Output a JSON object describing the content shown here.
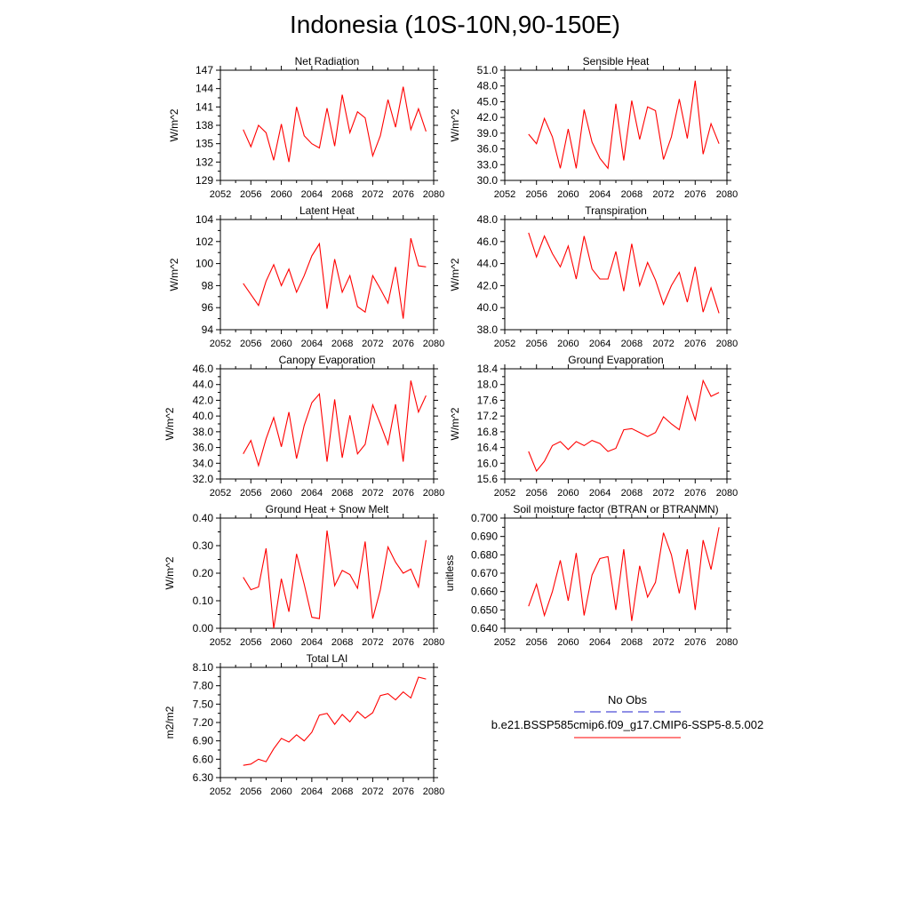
{
  "title": "Indonesia (10S-10N,90-150E)",
  "colors": {
    "series": "#ff0000",
    "obs": "#2020cc",
    "axis": "#000000"
  },
  "chart_data": [
    {
      "type": "line",
      "title": "Net Radiation",
      "ylabel": "W/m^2",
      "xlim": [
        2052,
        2080
      ],
      "ylim": [
        129,
        147
      ],
      "xticks": [
        "2052",
        "2056",
        "2060",
        "2064",
        "2068",
        "2072",
        "2076",
        "2080"
      ],
      "yticks": [
        "129",
        "132",
        "135",
        "138",
        "141",
        "144",
        "147"
      ],
      "x": [
        2055,
        2056,
        2057,
        2058,
        2059,
        2060,
        2061,
        2062,
        2063,
        2064,
        2065,
        2066,
        2067,
        2068,
        2069,
        2070,
        2071,
        2072,
        2073,
        2074,
        2075,
        2076,
        2077,
        2078,
        2079
      ],
      "series": [
        {
          "values": [
            137.3,
            134.5,
            138.0,
            136.8,
            132.3,
            138.2,
            132.0,
            141.0,
            136.3,
            135.0,
            134.3,
            140.8,
            134.6,
            143.0,
            136.8,
            140.2,
            139.2,
            133.0,
            136.3,
            142.2,
            137.7,
            144.3,
            137.3,
            140.7,
            137.0
          ]
        }
      ]
    },
    {
      "type": "line",
      "title": "Sensible Heat",
      "ylabel": "W/m^2",
      "xlim": [
        2052,
        2080
      ],
      "ylim": [
        30.0,
        51.0
      ],
      "xticks": [
        "2052",
        "2056",
        "2060",
        "2064",
        "2068",
        "2072",
        "2076",
        "2080"
      ],
      "yticks": [
        "30.0",
        "33.0",
        "36.0",
        "39.0",
        "42.0",
        "45.0",
        "48.0",
        "51.0"
      ],
      "x": [
        2055,
        2056,
        2057,
        2058,
        2059,
        2060,
        2061,
        2062,
        2063,
        2064,
        2065,
        2066,
        2067,
        2068,
        2069,
        2070,
        2071,
        2072,
        2073,
        2074,
        2075,
        2076,
        2077,
        2078,
        2079
      ],
      "series": [
        {
          "values": [
            38.8,
            37.0,
            41.8,
            38.3,
            32.3,
            39.8,
            32.3,
            43.5,
            37.3,
            34.2,
            32.3,
            44.6,
            33.8,
            45.2,
            37.8,
            44.0,
            43.3,
            34.0,
            38.3,
            45.5,
            38.0,
            49.0,
            35.0,
            40.8,
            37.0
          ]
        }
      ]
    },
    {
      "type": "line",
      "title": "Latent Heat",
      "ylabel": "W/m^2",
      "xlim": [
        2052,
        2080
      ],
      "ylim": [
        94,
        104
      ],
      "xticks": [
        "2052",
        "2056",
        "2060",
        "2064",
        "2068",
        "2072",
        "2076",
        "2080"
      ],
      "yticks": [
        "94",
        "96",
        "98",
        "100",
        "102",
        "104"
      ],
      "x": [
        2055,
        2056,
        2057,
        2058,
        2059,
        2060,
        2061,
        2062,
        2063,
        2064,
        2065,
        2066,
        2067,
        2068,
        2069,
        2070,
        2071,
        2072,
        2073,
        2074,
        2075,
        2076,
        2077,
        2078,
        2079
      ],
      "series": [
        {
          "values": [
            98.2,
            97.2,
            96.2,
            98.4,
            99.9,
            98.0,
            99.5,
            97.4,
            98.9,
            100.7,
            101.8,
            95.9,
            100.4,
            97.4,
            98.9,
            96.1,
            95.6,
            98.9,
            97.7,
            96.4,
            99.7,
            95.0,
            102.3,
            99.8,
            99.7
          ]
        }
      ]
    },
    {
      "type": "line",
      "title": "Transpiration",
      "ylabel": "W/m^2",
      "xlim": [
        2052,
        2080
      ],
      "ylim": [
        38.0,
        48.0
      ],
      "xticks": [
        "2052",
        "2056",
        "2060",
        "2064",
        "2068",
        "2072",
        "2076",
        "2080"
      ],
      "yticks": [
        "38.0",
        "40.0",
        "42.0",
        "44.0",
        "46.0",
        "48.0"
      ],
      "x": [
        2055,
        2056,
        2057,
        2058,
        2059,
        2060,
        2061,
        2062,
        2063,
        2064,
        2065,
        2066,
        2067,
        2068,
        2069,
        2070,
        2071,
        2072,
        2073,
        2074,
        2075,
        2076,
        2077,
        2078,
        2079
      ],
      "series": [
        {
          "values": [
            46.8,
            44.6,
            46.5,
            44.9,
            43.7,
            45.6,
            42.6,
            46.5,
            43.5,
            42.6,
            42.6,
            45.1,
            41.5,
            45.8,
            42.0,
            44.1,
            42.5,
            40.3,
            42.0,
            43.2,
            40.5,
            43.7,
            39.6,
            41.8,
            39.5
          ]
        }
      ]
    },
    {
      "type": "line",
      "title": "Canopy Evaporation",
      "ylabel": "W/m^2",
      "xlim": [
        2052,
        2080
      ],
      "ylim": [
        32.0,
        46.0
      ],
      "xticks": [
        "2052",
        "2056",
        "2060",
        "2064",
        "2068",
        "2072",
        "2076",
        "2080"
      ],
      "yticks": [
        "32.0",
        "34.0",
        "36.0",
        "38.0",
        "40.0",
        "42.0",
        "44.0",
        "46.0"
      ],
      "x": [
        2055,
        2056,
        2057,
        2058,
        2059,
        2060,
        2061,
        2062,
        2063,
        2064,
        2065,
        2066,
        2067,
        2068,
        2069,
        2070,
        2071,
        2072,
        2073,
        2074,
        2075,
        2076,
        2077,
        2078,
        2079
      ],
      "series": [
        {
          "values": [
            35.2,
            36.9,
            33.7,
            37.1,
            39.8,
            36.1,
            40.5,
            34.6,
            38.8,
            41.7,
            42.8,
            34.2,
            42.1,
            34.7,
            40.1,
            35.2,
            36.4,
            41.4,
            39.0,
            36.4,
            41.5,
            34.2,
            44.5,
            40.5,
            42.6
          ]
        }
      ]
    },
    {
      "type": "line",
      "title": "Ground Evaporation",
      "ylabel": "W/m^2",
      "xlim": [
        2052,
        2080
      ],
      "ylim": [
        15.6,
        18.4
      ],
      "xticks": [
        "2052",
        "2056",
        "2060",
        "2064",
        "2068",
        "2072",
        "2076",
        "2080"
      ],
      "yticks": [
        "15.6",
        "16.0",
        "16.4",
        "16.8",
        "17.2",
        "17.6",
        "18.0",
        "18.4"
      ],
      "x": [
        2055,
        2056,
        2057,
        2058,
        2059,
        2060,
        2061,
        2062,
        2063,
        2064,
        2065,
        2066,
        2067,
        2068,
        2069,
        2070,
        2071,
        2072,
        2073,
        2074,
        2075,
        2076,
        2077,
        2078,
        2079
      ],
      "series": [
        {
          "values": [
            16.3,
            15.8,
            16.05,
            16.45,
            16.55,
            16.35,
            16.55,
            16.45,
            16.58,
            16.5,
            16.3,
            16.38,
            16.85,
            16.88,
            16.78,
            16.68,
            16.78,
            17.18,
            17.0,
            16.85,
            17.7,
            17.1,
            18.1,
            17.7,
            17.8
          ]
        }
      ]
    },
    {
      "type": "line",
      "title": "Ground Heat + Snow Melt",
      "ylabel": "W/m^2",
      "xlim": [
        2052,
        2080
      ],
      "ylim": [
        0.0,
        0.4
      ],
      "xticks": [
        "2052",
        "2056",
        "2060",
        "2064",
        "2068",
        "2072",
        "2076",
        "2080"
      ],
      "yticks": [
        "0.00",
        "0.10",
        "0.20",
        "0.30",
        "0.40"
      ],
      "x": [
        2055,
        2056,
        2057,
        2058,
        2059,
        2060,
        2061,
        2062,
        2063,
        2064,
        2065,
        2066,
        2067,
        2068,
        2069,
        2070,
        2071,
        2072,
        2073,
        2074,
        2075,
        2076,
        2077,
        2078,
        2079
      ],
      "series": [
        {
          "values": [
            0.185,
            0.14,
            0.15,
            0.29,
            0.0,
            0.18,
            0.06,
            0.27,
            0.16,
            0.04,
            0.035,
            0.355,
            0.155,
            0.21,
            0.195,
            0.145,
            0.315,
            0.035,
            0.14,
            0.295,
            0.24,
            0.2,
            0.215,
            0.15,
            0.32
          ]
        }
      ]
    },
    {
      "type": "line",
      "title": "Soil moisture factor (BTRAN or BTRANMN)",
      "ylabel": "unitless",
      "xlim": [
        2052,
        2080
      ],
      "ylim": [
        0.64,
        0.7
      ],
      "xticks": [
        "2052",
        "2056",
        "2060",
        "2064",
        "2068",
        "2072",
        "2076",
        "2080"
      ],
      "yticks": [
        "0.640",
        "0.650",
        "0.660",
        "0.670",
        "0.680",
        "0.690",
        "0.700"
      ],
      "x": [
        2055,
        2056,
        2057,
        2058,
        2059,
        2060,
        2061,
        2062,
        2063,
        2064,
        2065,
        2066,
        2067,
        2068,
        2069,
        2070,
        2071,
        2072,
        2073,
        2074,
        2075,
        2076,
        2077,
        2078,
        2079
      ],
      "series": [
        {
          "values": [
            0.652,
            0.664,
            0.647,
            0.66,
            0.677,
            0.655,
            0.681,
            0.647,
            0.669,
            0.678,
            0.679,
            0.65,
            0.683,
            0.644,
            0.674,
            0.657,
            0.665,
            0.692,
            0.68,
            0.659,
            0.683,
            0.65,
            0.688,
            0.672,
            0.695
          ]
        }
      ]
    },
    {
      "type": "line",
      "title": "Total LAI",
      "ylabel": "m2/m2",
      "xlim": [
        2052,
        2080
      ],
      "ylim": [
        6.3,
        8.1
      ],
      "xticks": [
        "2052",
        "2056",
        "2060",
        "2064",
        "2068",
        "2072",
        "2076",
        "2080"
      ],
      "yticks": [
        "6.30",
        "6.60",
        "6.90",
        "7.20",
        "7.50",
        "7.80",
        "8.10"
      ],
      "x": [
        2055,
        2056,
        2057,
        2058,
        2059,
        2060,
        2061,
        2062,
        2063,
        2064,
        2065,
        2066,
        2067,
        2068,
        2069,
        2070,
        2071,
        2072,
        2073,
        2074,
        2075,
        2076,
        2077,
        2078,
        2079
      ],
      "series": [
        {
          "values": [
            6.5,
            6.52,
            6.6,
            6.56,
            6.77,
            6.94,
            6.88,
            7.0,
            6.9,
            7.04,
            7.32,
            7.35,
            7.17,
            7.33,
            7.21,
            7.38,
            7.27,
            7.36,
            7.64,
            7.67,
            7.57,
            7.7,
            7.6,
            7.94,
            7.91
          ]
        }
      ]
    }
  ],
  "legend": {
    "obs_label": "No Obs",
    "model_label": "b.e21.BSSP585cmip6.f09_g17.CMIP6-SSP5-8.5.002"
  }
}
